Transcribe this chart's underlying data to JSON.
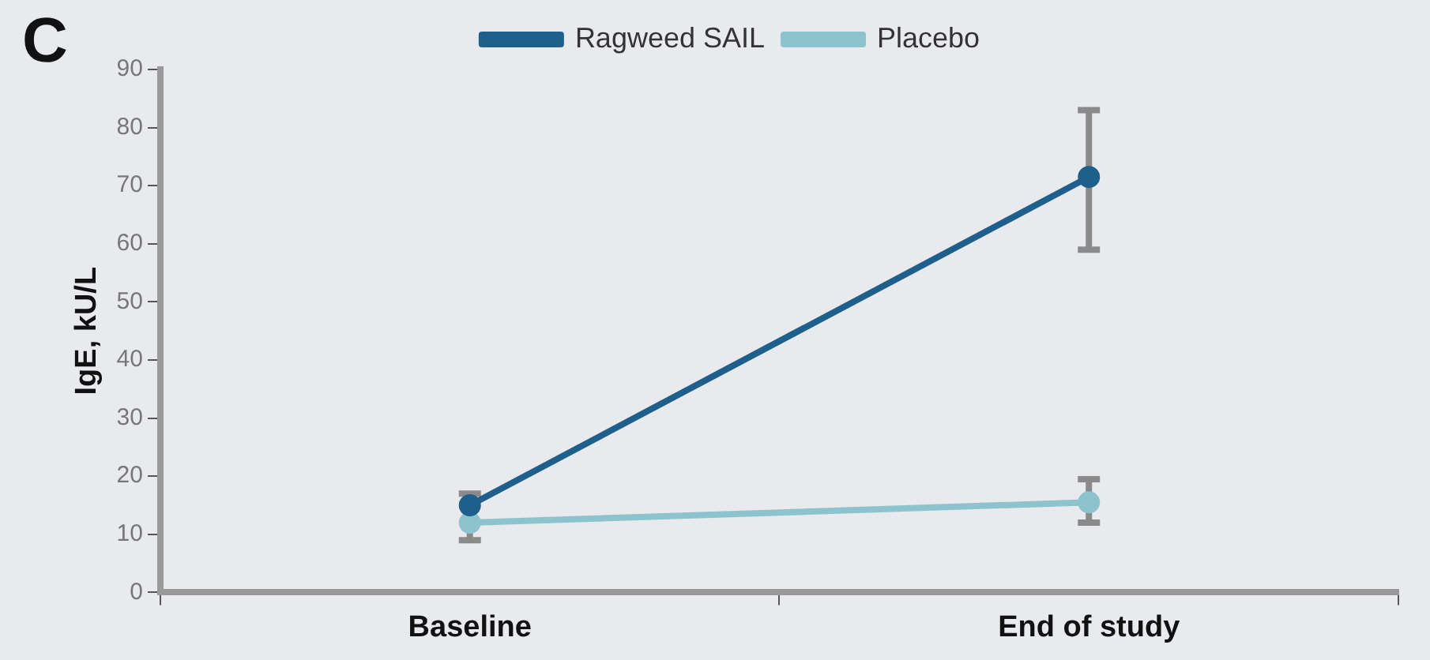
{
  "chart_data": {
    "type": "line",
    "annotations": [
      "C"
    ],
    "ylabel": "IgE, kU/L",
    "categories": [
      "Baseline",
      "End of study"
    ],
    "series": [
      {
        "name": "Ragweed SAIL",
        "color": "#1f5f8b",
        "values": [
          15,
          71.5
        ],
        "errors": [
          null,
          [
            59,
            83
          ]
        ]
      },
      {
        "name": "Placebo",
        "color": "#8cc3cc",
        "values": [
          12,
          15.5
        ],
        "errors": [
          [
            9,
            17
          ],
          [
            12,
            19.5
          ]
        ]
      }
    ],
    "ylim": [
      0,
      90
    ],
    "yticks": [
      0,
      10,
      20,
      30,
      40,
      50,
      60,
      70,
      80,
      90
    ],
    "grid": false,
    "legend": "top",
    "marker": "circle",
    "line_style": "solid"
  }
}
